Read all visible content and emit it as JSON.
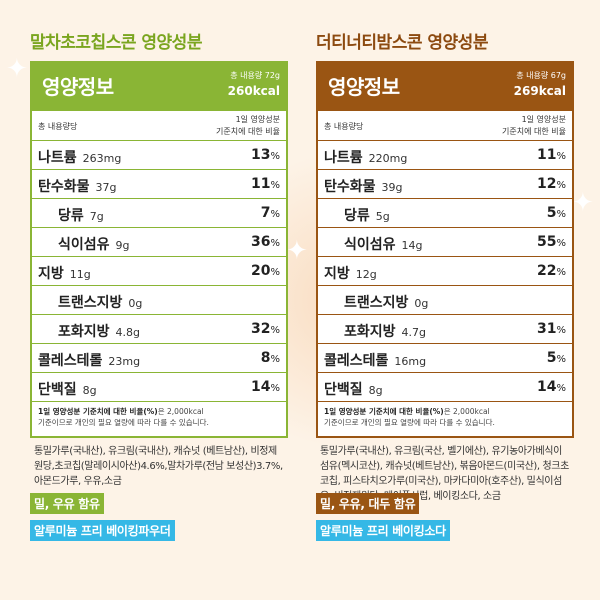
{
  "left": {
    "title": "말차초코칩스콘 영양성분",
    "header_label": "영양정보",
    "total_amount": "총 내용량 72g",
    "kcal": "260kcal",
    "basis_label": "총 내용량당",
    "daily_ref_1": "1일 영양성분",
    "daily_ref_2": "기준치에 대한 비율",
    "rows": [
      {
        "name": "나트륨",
        "amount": "263mg",
        "pct": "13",
        "indent": false
      },
      {
        "name": "탄수화물",
        "amount": "37g",
        "pct": "11",
        "indent": false
      },
      {
        "name": "당류",
        "amount": "7g",
        "pct": "7",
        "indent": true
      },
      {
        "name": "식이섬유",
        "amount": "9g",
        "pct": "36",
        "indent": true
      },
      {
        "name": "지방",
        "amount": "11g",
        "pct": "20",
        "indent": false
      },
      {
        "name": "트랜스지방",
        "amount": "0g",
        "pct": "",
        "indent": true
      },
      {
        "name": "포화지방",
        "amount": "4.8g",
        "pct": "32",
        "indent": true
      },
      {
        "name": "콜레스테롤",
        "amount": "23mg",
        "pct": "8",
        "indent": false
      },
      {
        "name": "단백질",
        "amount": "8g",
        "pct": "14",
        "indent": false
      }
    ],
    "note_bold": "1일 영양성분 기준치에 대한 비율(%)",
    "note_rest_1": "은 2,000kcal",
    "note_rest_2": "기준이므로 개인의 필요 열량에 따라 다를 수 있습니다.",
    "ingredients": "통밀가루(국내산), 유크림(국내산), 캐슈넛 (베트남산), 비정제원당,초코칩(말레이시아산)4.6%,말차가루(전남 보성산)3.7%, 아몬드가루, 우유,소금",
    "allergy": "밀, 우유 함유",
    "free": "알루미늄 프리 베이킹파우더"
  },
  "right": {
    "title": "더티너티밤스콘 영양성분",
    "header_label": "영양정보",
    "total_amount": "총 내용량 67g",
    "kcal": "269kcal",
    "basis_label": "총 내용량당",
    "daily_ref_1": "1일 영양성분",
    "daily_ref_2": "기준치에 대한 비율",
    "rows": [
      {
        "name": "나트륨",
        "amount": "220mg",
        "pct": "11",
        "indent": false
      },
      {
        "name": "탄수화물",
        "amount": "39g",
        "pct": "12",
        "indent": false
      },
      {
        "name": "당류",
        "amount": "5g",
        "pct": "5",
        "indent": true
      },
      {
        "name": "식이섬유",
        "amount": "14g",
        "pct": "55",
        "indent": true
      },
      {
        "name": "지방",
        "amount": "12g",
        "pct": "22",
        "indent": false
      },
      {
        "name": "트랜스지방",
        "amount": "0g",
        "pct": "",
        "indent": true
      },
      {
        "name": "포화지방",
        "amount": "4.7g",
        "pct": "31",
        "indent": true
      },
      {
        "name": "콜레스테롤",
        "amount": "16mg",
        "pct": "5",
        "indent": false
      },
      {
        "name": "단백질",
        "amount": "8g",
        "pct": "14",
        "indent": false
      }
    ],
    "note_bold": "1일 영양성분 기준치에 대한 비율(%)",
    "note_rest_1": "은 2,000kcal",
    "note_rest_2": "기준이므로 개인의 필요 열량에 따라 다를 수 있습니다.",
    "ingredients": "통밀가루(국내산), 유크림(국산, 벨기에산), 유기농아가베식이섬유(멕시코산), 캐슈넛(베트남산), 볶음아몬드(미국산), 청크초코칩, 피스타치오가루(미국산), 마카다미아(호주산), 밀식이섬유, 비정제원당, 메이플시럽, 베이킹소다, 소금",
    "allergy": "밀, 우유, 대두 함유",
    "free": "알루미늄 프리 베이킹소다"
  },
  "pct_unit": "%"
}
